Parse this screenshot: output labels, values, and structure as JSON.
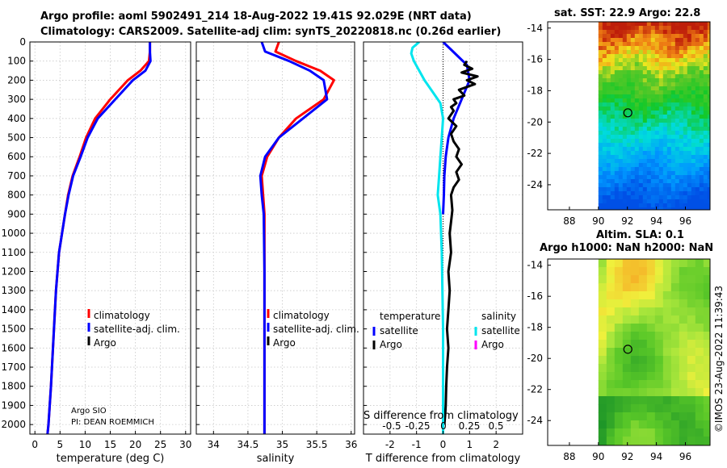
{
  "title_line1": "Argo profile: aoml 5902491_214 18-Aug-2022 19.41S 92.029E (NRT data)",
  "title_line2": "Climatology: CARS2009. Satellite-adj clim: synTS_20220818.nc (0.26d earlier)",
  "map1_title": "sat. SST: 22.9 Argo: 22.8",
  "map2_title_line1": "Altim. SLA: 0.1",
  "map2_title_line2": "Argo h1000: NaN h2000: NaN",
  "timestamp": "©IMOS 23-Aug-2022 11:39:43",
  "credit_line1": "Argo SIO",
  "credit_line2": "PI: DEAN ROEMMICH",
  "colors": {
    "climatology": "#ff0000",
    "satellite": "#0000ff",
    "argo": "#000000",
    "sat_salinity": "#00e5ee",
    "argo_salinity": "#ff00ff"
  },
  "chart_data": [
    {
      "type": "line",
      "title": "",
      "xlabel": "temperature (deg C)",
      "ylabel": "",
      "xlim": [
        -1,
        31
      ],
      "ylim": [
        2050,
        0
      ],
      "xticks": [
        "0",
        "5",
        "10",
        "15",
        "20",
        "25",
        "30"
      ],
      "yticks": [
        "0",
        "100",
        "200",
        "300",
        "400",
        "500",
        "600",
        "700",
        "800",
        "900",
        "1000",
        "1100",
        "1200",
        "1300",
        "1400",
        "1500",
        "1600",
        "1700",
        "1800",
        "1900",
        "2000"
      ],
      "legend": [
        "climatology",
        "satellite-adj. clim.",
        "Argo"
      ],
      "series": [
        {
          "name": "climatology",
          "color": "#ff0000",
          "x": [
            22.9,
            22.9,
            22.7,
            21,
            18.5,
            15,
            12,
            10.2,
            8.9,
            7.5,
            6.6,
            6,
            4.8,
            4.2,
            3.8,
            3.2,
            2.7,
            2.5
          ],
          "y": [
            0,
            50,
            100,
            150,
            200,
            300,
            400,
            500,
            600,
            700,
            800,
            900,
            1100,
            1300,
            1500,
            1800,
            2000,
            2050
          ]
        },
        {
          "name": "satellite-adj. clim.",
          "color": "#0000ff",
          "x": [
            22.9,
            22.9,
            23,
            22,
            19.5,
            16,
            12.5,
            10.5,
            9.1,
            7.6,
            6.7,
            6,
            4.8,
            4.2,
            3.8,
            3.2,
            2.7,
            2.5
          ],
          "y": [
            0,
            50,
            100,
            150,
            200,
            300,
            400,
            500,
            600,
            700,
            800,
            900,
            1100,
            1300,
            1500,
            1800,
            2000,
            2050
          ]
        },
        {
          "name": "Argo",
          "color": "#000000",
          "x": [],
          "y": []
        }
      ]
    },
    {
      "type": "line",
      "xlabel": "salinity",
      "xlim": [
        33.75,
        36.05
      ],
      "ylim": [
        2050,
        0
      ],
      "xticks": [
        "34",
        "34.5",
        "35",
        "35.5",
        "36"
      ],
      "legend": [
        "climatology",
        "satellite-adj. clim.",
        "Argo"
      ],
      "series": [
        {
          "name": "climatology",
          "color": "#ff0000",
          "x": [
            34.95,
            34.9,
            35.2,
            35.55,
            35.75,
            35.6,
            35.2,
            34.95,
            34.78,
            34.7,
            34.72,
            34.74,
            34.74,
            34.74,
            34.74
          ],
          "y": [
            0,
            50,
            100,
            150,
            200,
            300,
            400,
            500,
            600,
            700,
            800,
            900,
            1200,
            1600,
            2050
          ]
        },
        {
          "name": "satellite-adj. clim.",
          "color": "#0000ff",
          "x": [
            34.7,
            34.75,
            35.1,
            35.4,
            35.6,
            35.65,
            35.3,
            34.95,
            34.75,
            34.68,
            34.7,
            34.73,
            34.74,
            34.74,
            34.74
          ],
          "y": [
            0,
            50,
            100,
            150,
            200,
            300,
            400,
            500,
            600,
            700,
            800,
            900,
            1200,
            1600,
            2050
          ]
        },
        {
          "name": "Argo",
          "color": "#000000",
          "x": [],
          "y": []
        }
      ]
    },
    {
      "type": "line",
      "xlabel": "T difference from climatology",
      "xlabel_top": "S difference from climatology",
      "xlim": [
        -3,
        3
      ],
      "ylim": [
        2050,
        0
      ],
      "xticks": [
        "-2",
        "-1",
        "0",
        "1",
        "2"
      ],
      "xticks_top": [
        "-0.5",
        "-0.25",
        "0",
        "0.25",
        "0.5"
      ],
      "legend_left_title": "temperature",
      "legend_right_title": "salinity",
      "legend_left": [
        "satellite",
        "Argo"
      ],
      "legend_right": [
        "satellite",
        "Argo"
      ],
      "series": [
        {
          "name": "temperature satellite",
          "color": "#0000ff",
          "x": [
            0,
            0.3,
            0.6,
            0.9,
            1,
            0.7,
            0.4,
            0.2,
            0.1,
            0.05,
            0.03,
            0
          ],
          "y": [
            0,
            40,
            80,
            120,
            200,
            300,
            400,
            500,
            600,
            700,
            800,
            900
          ]
        },
        {
          "name": "temperature Argo",
          "color": "#000000",
          "x": [
            0.9,
            0.8,
            1.1,
            0.7,
            1.3,
            0.9,
            1.2,
            0.6,
            0.8,
            0.4,
            0.5,
            0.3,
            0.4,
            0.2,
            0.5,
            0.3,
            0.4,
            0.6,
            0.5,
            0.7,
            0.5,
            0.6,
            0.4,
            0.3,
            0.35,
            0.3,
            0.25,
            0.3,
            0.2,
            0.25,
            0.2,
            0.15,
            0.2,
            0.15,
            0.12,
            0.1,
            0.08,
            0.05
          ],
          "y": [
            100,
            120,
            140,
            160,
            180,
            200,
            220,
            250,
            280,
            300,
            320,
            340,
            360,
            400,
            440,
            480,
            520,
            560,
            600,
            640,
            680,
            720,
            760,
            800,
            880,
            940,
            1000,
            1100,
            1200,
            1300,
            1400,
            1500,
            1600,
            1700,
            1800,
            1900,
            1950,
            2000
          ]
        },
        {
          "name": "salinity satellite",
          "color": "#00e5ee",
          "x": [
            -0.9,
            -1.15,
            -1.2,
            -1.1,
            -0.9,
            -0.7,
            -0.4,
            -0.1,
            0,
            -0.05,
            -0.1,
            -0.15,
            -0.2,
            -0.1,
            -0.05,
            0,
            0
          ],
          "y": [
            0,
            30,
            60,
            100,
            150,
            200,
            260,
            320,
            400,
            500,
            600,
            700,
            800,
            900,
            1100,
            1500,
            2050
          ]
        },
        {
          "name": "salinity Argo",
          "color": "#ff00ff",
          "x": [],
          "y": []
        }
      ]
    },
    {
      "type": "heatmap",
      "title": "sat. SST: 22.9 Argo: 22.8",
      "xlim": [
        86.5,
        97.7
      ],
      "ylim": [
        -25.6,
        -13.6
      ],
      "xticks": [
        "88",
        "90",
        "92",
        "94",
        "96"
      ],
      "yticks": [
        "-14",
        "-16",
        "-18",
        "-20",
        "-22",
        "-24"
      ],
      "data_lon_min": 90,
      "marker": {
        "lon": 92.03,
        "lat": -19.41
      }
    },
    {
      "type": "heatmap",
      "title": "Altim. SLA: 0.1",
      "xlim": [
        86.5,
        97.7
      ],
      "ylim": [
        -25.6,
        -13.6
      ],
      "xticks": [
        "88",
        "90",
        "92",
        "94",
        "96"
      ],
      "yticks": [
        "-14",
        "-16",
        "-18",
        "-20",
        "-22",
        "-24"
      ],
      "data_lon_min": 90,
      "marker": {
        "lon": 92.03,
        "lat": -19.41
      }
    }
  ]
}
